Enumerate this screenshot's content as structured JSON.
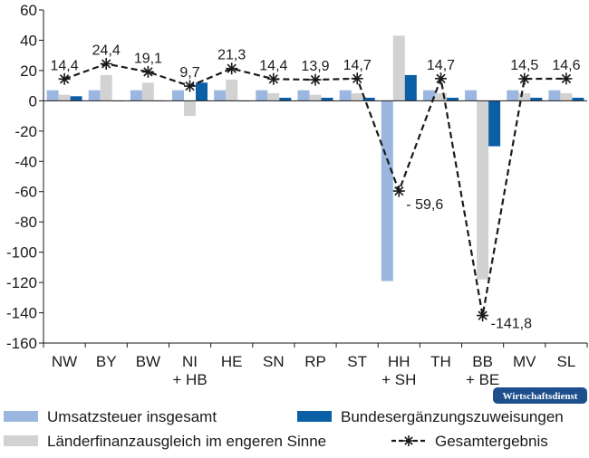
{
  "chart_data": {
    "type": "bar",
    "categories": [
      [
        "NW"
      ],
      [
        "BY"
      ],
      [
        "BW"
      ],
      [
        "NI",
        "+ HB"
      ],
      [
        "HE"
      ],
      [
        "SN"
      ],
      [
        "RP"
      ],
      [
        "ST"
      ],
      [
        "HH",
        "+ SH"
      ],
      [
        "TH"
      ],
      [
        "BB",
        "+ BE"
      ],
      [
        "MV"
      ],
      [
        "SL"
      ]
    ],
    "series": [
      {
        "name": "Umsatzsteuer insgesamt",
        "kind": "bar",
        "color": "#9bb7e0",
        "values": [
          7,
          7,
          7,
          7,
          7,
          7,
          7,
          7,
          -119,
          7,
          7,
          7,
          7
        ]
      },
      {
        "name": "Länderfinanzausgleich im engeren Sinne",
        "kind": "bar",
        "color": "#d2d2d2",
        "values": [
          4,
          17,
          12,
          -10,
          14,
          5,
          4,
          5,
          43,
          5,
          -118,
          5,
          5
        ]
      },
      {
        "name": "Bundesergänzungszuweisungen",
        "kind": "bar",
        "color": "#0b5fa5",
        "values": [
          3,
          0,
          0,
          12,
          0,
          2,
          2,
          2,
          17,
          2,
          -30,
          2,
          2
        ]
      },
      {
        "name": "Gesamtergebnis",
        "kind": "line",
        "color": "#1a1a1a",
        "values": [
          14.4,
          24.4,
          19.1,
          9.7,
          21.3,
          14.4,
          13.9,
          14.7,
          -59.6,
          14.7,
          -141.8,
          14.5,
          14.6
        ],
        "labels": [
          "14,4",
          "24,4",
          "19,1",
          "9,7",
          "21,3",
          "14,4",
          "13,9",
          "14,7",
          "- 59,6",
          "14,7",
          "-141,8",
          "14,5",
          "14,6"
        ]
      }
    ],
    "ylim": [
      -160,
      60
    ],
    "yticks": [
      60,
      40,
      20,
      0,
      -20,
      -40,
      -60,
      -80,
      -100,
      -120,
      -140,
      -160
    ],
    "ytick_labels": [
      "60",
      "40",
      "20",
      "0",
      "-20",
      "-40",
      "-60",
      "-80",
      "-100",
      "-120",
      "-140",
      "-160"
    ],
    "grid": false,
    "legend_position": "bottom",
    "legend_order": [
      0,
      2,
      1,
      3
    ],
    "title": "",
    "xlabel": "",
    "ylabel": ""
  },
  "badge": {
    "text": "Wirtschaftsdienst",
    "color": "#1d4f8c"
  }
}
